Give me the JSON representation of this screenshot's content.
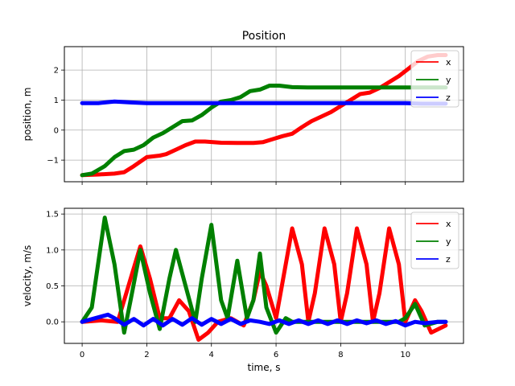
{
  "colors": {
    "x": "#ff0000",
    "y": "#008000",
    "z": "#0000ff",
    "grid": "#b0b0b0"
  },
  "chart_data": [
    {
      "type": "line",
      "title": "Position",
      "xlabel": "",
      "ylabel": "position, m",
      "xlim": [
        -0.55,
        11.8
      ],
      "ylim": [
        -1.72,
        2.78
      ],
      "xticks": [
        0,
        2,
        4,
        6,
        8,
        10
      ],
      "xtick_labels": [
        "",
        "",
        "",
        "",
        "",
        ""
      ],
      "yticks": [
        -1,
        0,
        1,
        2
      ],
      "ytick_labels": [
        "−1",
        "0",
        "1",
        "2"
      ],
      "grid": true,
      "legend": "upper right",
      "series": [
        {
          "name": "x",
          "color_key": "x",
          "x": [
            0,
            0.5,
            1.0,
            1.3,
            1.6,
            2.0,
            2.4,
            2.6,
            2.9,
            3.2,
            3.5,
            3.8,
            4.3,
            4.8,
            5.3,
            5.6,
            5.9,
            6.2,
            6.5,
            6.8,
            7.1,
            7.4,
            7.7,
            8.0,
            8.3,
            8.6,
            8.9,
            9.2,
            9.5,
            9.8,
            10.1,
            10.4,
            10.7,
            11.0,
            11.25
          ],
          "values": [
            -1.5,
            -1.48,
            -1.45,
            -1.4,
            -1.2,
            -0.9,
            -0.85,
            -0.8,
            -0.65,
            -0.5,
            -0.38,
            -0.38,
            -0.42,
            -0.43,
            -0.43,
            -0.4,
            -0.3,
            -0.2,
            -0.12,
            0.1,
            0.3,
            0.45,
            0.6,
            0.8,
            1.0,
            1.2,
            1.25,
            1.4,
            1.6,
            1.8,
            2.05,
            2.3,
            2.45,
            2.5,
            2.5
          ]
        },
        {
          "name": "y",
          "color_key": "y",
          "x": [
            0,
            0.3,
            0.7,
            1.0,
            1.3,
            1.6,
            1.9,
            2.2,
            2.5,
            2.8,
            3.1,
            3.4,
            3.7,
            4.0,
            4.3,
            4.6,
            4.9,
            5.2,
            5.5,
            5.8,
            6.1,
            6.5,
            7.0,
            7.5,
            8.0,
            8.5,
            9.0,
            9.5,
            10.0,
            10.5,
            11.0,
            11.25
          ],
          "values": [
            -1.5,
            -1.45,
            -1.2,
            -0.9,
            -0.7,
            -0.65,
            -0.5,
            -0.25,
            -0.1,
            0.1,
            0.3,
            0.32,
            0.5,
            0.75,
            0.95,
            1.0,
            1.1,
            1.3,
            1.35,
            1.48,
            1.48,
            1.43,
            1.42,
            1.42,
            1.42,
            1.42,
            1.42,
            1.42,
            1.42,
            1.42,
            1.42,
            1.42
          ]
        },
        {
          "name": "z",
          "color_key": "z",
          "x": [
            0,
            0.5,
            1.0,
            1.5,
            2.0,
            3.0,
            4.0,
            5.0,
            6.0,
            7.0,
            8.0,
            9.0,
            10.0,
            10.5,
            11.0,
            11.25
          ],
          "values": [
            0.9,
            0.9,
            0.95,
            0.92,
            0.9,
            0.9,
            0.9,
            0.9,
            0.9,
            0.9,
            0.9,
            0.9,
            0.9,
            0.88,
            0.88,
            0.88
          ]
        }
      ]
    },
    {
      "type": "line",
      "title": "",
      "xlabel": "time, s",
      "ylabel": "velocity, m/s",
      "xlim": [
        -0.55,
        11.8
      ],
      "ylim": [
        -0.3,
        1.58
      ],
      "xticks": [
        0,
        2,
        4,
        6,
        8,
        10
      ],
      "xtick_labels": [
        "0",
        "2",
        "4",
        "6",
        "8",
        "10"
      ],
      "yticks": [
        0.0,
        0.5,
        1.0,
        1.5
      ],
      "ytick_labels": [
        "0.0",
        "0.5",
        "1.0",
        "1.5"
      ],
      "grid": true,
      "legend": "upper right",
      "series": [
        {
          "name": "x",
          "color_key": "x",
          "x": [
            0,
            0.6,
            1.1,
            1.5,
            1.8,
            2.1,
            2.4,
            2.7,
            3.0,
            3.3,
            3.6,
            3.9,
            4.2,
            4.6,
            5.0,
            5.3,
            5.5,
            5.7,
            6.0,
            6.2,
            6.5,
            6.8,
            7.0,
            7.2,
            7.5,
            7.8,
            8.0,
            8.2,
            8.5,
            8.8,
            9.0,
            9.2,
            9.5,
            9.8,
            10.0,
            10.3,
            10.5,
            10.8,
            11.25
          ],
          "values": [
            0.0,
            0.02,
            0.0,
            0.6,
            1.05,
            0.6,
            0.05,
            0.05,
            0.3,
            0.15,
            -0.25,
            -0.15,
            0.0,
            0.05,
            -0.05,
            0.3,
            0.7,
            0.5,
            0.05,
            0.55,
            1.3,
            0.8,
            0.0,
            0.4,
            1.3,
            0.8,
            0.0,
            0.4,
            1.3,
            0.8,
            0.0,
            0.4,
            1.3,
            0.8,
            0.0,
            0.3,
            0.15,
            -0.15,
            -0.05
          ]
        },
        {
          "name": "y",
          "color_key": "y",
          "x": [
            0,
            0.3,
            0.7,
            1.0,
            1.3,
            1.5,
            1.8,
            2.1,
            2.4,
            2.7,
            2.9,
            3.2,
            3.5,
            3.7,
            4.0,
            4.3,
            4.5,
            4.8,
            5.1,
            5.3,
            5.5,
            5.7,
            6.0,
            6.3,
            6.5,
            7.0,
            8.0,
            9.0,
            9.8,
            10.0,
            10.3,
            10.6,
            11.0,
            11.25
          ],
          "values": [
            0.0,
            0.2,
            1.45,
            0.8,
            -0.15,
            0.3,
            1.0,
            0.4,
            -0.1,
            0.6,
            1.0,
            0.5,
            0.0,
            0.6,
            1.35,
            0.3,
            0.05,
            0.85,
            0.05,
            0.3,
            0.95,
            0.2,
            -0.15,
            0.05,
            0.0,
            0.0,
            0.0,
            0.0,
            0.0,
            0.05,
            0.25,
            -0.05,
            0.0,
            0.0
          ]
        },
        {
          "name": "z",
          "color_key": "z",
          "x": [
            0,
            0.4,
            0.8,
            1.0,
            1.3,
            1.6,
            1.9,
            2.2,
            2.5,
            2.8,
            3.1,
            3.4,
            3.7,
            4.0,
            4.3,
            4.6,
            4.9,
            5.2,
            5.5,
            5.8,
            6.1,
            6.4,
            6.7,
            7.0,
            7.3,
            7.6,
            7.9,
            8.2,
            8.5,
            8.8,
            9.1,
            9.4,
            9.7,
            10.0,
            10.3,
            10.6,
            11.0,
            11.25
          ],
          "values": [
            0.0,
            0.05,
            0.1,
            0.05,
            -0.04,
            0.04,
            -0.05,
            0.04,
            -0.05,
            0.04,
            -0.04,
            0.05,
            -0.04,
            0.04,
            -0.03,
            0.04,
            -0.03,
            0.02,
            0.0,
            -0.03,
            0.02,
            -0.03,
            0.02,
            -0.03,
            0.02,
            -0.03,
            0.02,
            -0.03,
            0.02,
            -0.02,
            0.02,
            -0.03,
            0.01,
            -0.05,
            0.0,
            -0.02,
            0.0,
            0.0
          ]
        }
      ]
    }
  ]
}
